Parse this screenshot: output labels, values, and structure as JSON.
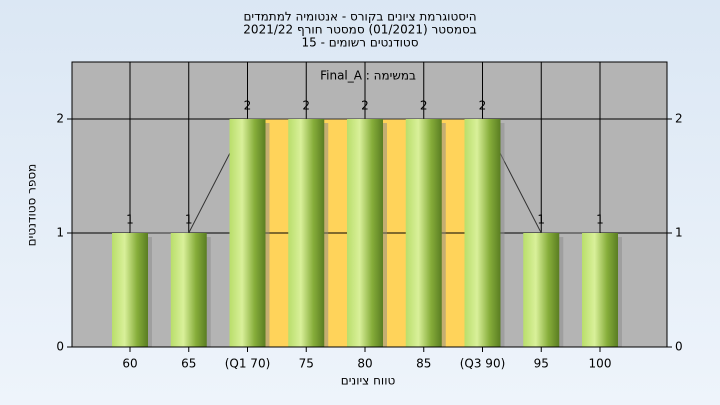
{
  "chart_data": {
    "type": "bar",
    "title": [
      "היסטוגרמת ציונים בקורס - אנטומיה למתמדים",
      "בסמסטר  (01/2021)  סמסטר חורף 2021/22",
      "סטודנטים רשומים - 15"
    ],
    "annotation": "Final_A : במשימה",
    "x_label": "טווח ציונים",
    "y_label": "מספר סטודנטים",
    "categories": [
      "60",
      "65",
      "(Q1 70)",
      "75",
      "80",
      "85",
      "(Q3 90)",
      "95",
      "100"
    ],
    "values": [
      1,
      1,
      2,
      2,
      2,
      2,
      2,
      1,
      1
    ],
    "color": "#8db53c",
    "highlight": {
      "from": 2,
      "to": 6,
      "color": "#ffd35a"
    },
    "ylim": [
      0,
      2.5
    ],
    "yticks": [
      0,
      1,
      2
    ],
    "y2lim": [
      0,
      2.5
    ],
    "y2ticks": [
      0,
      1,
      2
    ],
    "grid": true
  }
}
